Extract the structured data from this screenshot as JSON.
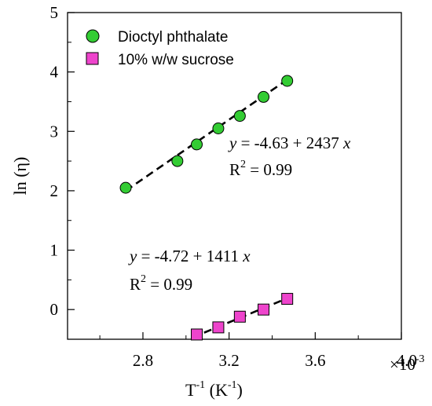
{
  "chart_data": {
    "type": "scatter",
    "xlabel": {
      "base": "T",
      "base_sup": "-1",
      "unit_open": " (K",
      "unit_sup": "-1",
      "unit_close": ")"
    },
    "ylabel": "ln (η)",
    "x_tick_labels": [
      "2.8",
      "3.2",
      "3.6",
      "4.0"
    ],
    "x_tick_values": [
      2.8,
      3.2,
      3.6,
      4.0
    ],
    "x_multiplier": {
      "text": "×10",
      "sup": "-3"
    },
    "y_tick_labels": [
      "0",
      "1",
      "2",
      "3",
      "4",
      "5"
    ],
    "y_tick_values": [
      0,
      1,
      2,
      3,
      4,
      5
    ],
    "xlim": [
      2.45,
      4.0
    ],
    "ylim": [
      -0.5,
      5
    ],
    "legend_position": "top-left",
    "series": [
      {
        "name": "Dioctyl phthalate",
        "marker": "circle",
        "color": "#33cc33",
        "x": [
          2.72,
          2.96,
          3.05,
          3.15,
          3.25,
          3.36,
          3.47
        ],
        "y": [
          2.05,
          2.5,
          2.78,
          3.05,
          3.26,
          3.58,
          3.85
        ],
        "fit": {
          "x": [
            2.72,
            3.47
          ],
          "y": [
            2.0,
            3.87
          ],
          "eq_y": "y",
          "eq_rest": " = -4.63 + 2437 ",
          "eq_x": "x",
          "r2_label": "R",
          "r2_sup": "2",
          "r2_rest": " = 0.99"
        }
      },
      {
        "name": "10% w/w sucrose",
        "marker": "square",
        "color": "#ee44cc",
        "x": [
          3.05,
          3.15,
          3.25,
          3.36,
          3.47
        ],
        "y": [
          -0.42,
          -0.3,
          -0.12,
          0.0,
          0.18
        ],
        "fit": {
          "x": [
            3.03,
            3.47
          ],
          "y": [
            -0.47,
            0.19
          ],
          "eq_y": "y",
          "eq_rest": " = -4.72 + 1411 ",
          "eq_x": "x",
          "r2_label": "R",
          "r2_sup": "2",
          "r2_rest": " = 0.99"
        }
      }
    ]
  }
}
